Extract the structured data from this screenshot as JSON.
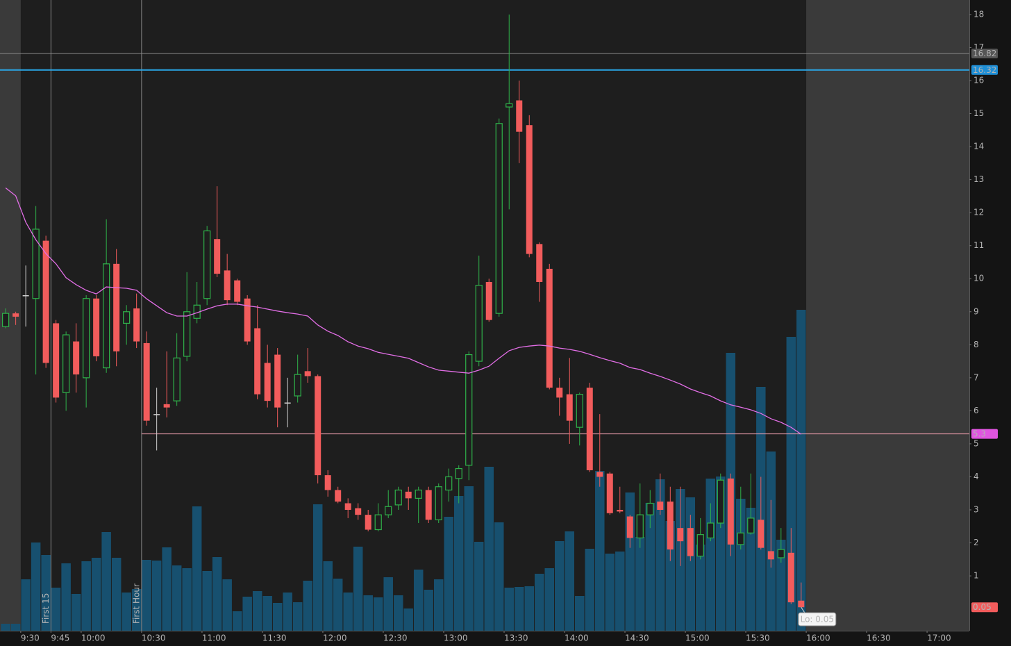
{
  "chart_data": {
    "type": "candlestick",
    "x": [
      560,
      565,
      570,
      575,
      580,
      585,
      590,
      595,
      600,
      605,
      610,
      615,
      620,
      625,
      630,
      635,
      640,
      645,
      650,
      655,
      660,
      665,
      670,
      675,
      680,
      685,
      690,
      695,
      700,
      705,
      710,
      715,
      720,
      725,
      730,
      735,
      740,
      745,
      750,
      755,
      760,
      765,
      770,
      775,
      780,
      785,
      790,
      795,
      800,
      805,
      810,
      815,
      820,
      825,
      830,
      835,
      840,
      845,
      850,
      855,
      860,
      865,
      870,
      875,
      880,
      885,
      890,
      895,
      900,
      905,
      910,
      915,
      920,
      925,
      930,
      935,
      940,
      945,
      950,
      955
    ],
    "open": [
      8.55,
      8.95,
      9.5,
      9.4,
      11.15,
      8.65,
      6.55,
      8.1,
      7.0,
      9.4,
      7.3,
      10.45,
      8.65,
      9.1,
      8.05,
      5.9,
      6.2,
      6.3,
      7.65,
      8.8,
      9.4,
      11.2,
      10.25,
      9.95,
      9.4,
      8.5,
      7.45,
      7.7,
      6.25,
      6.45,
      7.2,
      7.05,
      4.05,
      3.6,
      3.2,
      3.05,
      2.85,
      2.4,
      2.85,
      3.15,
      3.55,
      3.35,
      3.6,
      2.7,
      3.6,
      3.95,
      4.35,
      7.5,
      9.9,
      8.95,
      15.2,
      15.4,
      14.65,
      11.05,
      10.3,
      6.7,
      6.5,
      5.5,
      6.7,
      4.15,
      4.1,
      3.0,
      2.8,
      2.15,
      2.85,
      3.25,
      3.25,
      2.45,
      2.45,
      1.6,
      2.15,
      2.6,
      3.95,
      1.95,
      2.3,
      2.7,
      1.75,
      1.55,
      1.7,
      0.25
    ],
    "high": [
      9.1,
      9.0,
      10.4,
      12.2,
      11.3,
      8.75,
      8.4,
      8.65,
      9.5,
      9.5,
      11.8,
      10.9,
      9.2,
      9.55,
      8.4,
      6.7,
      7.8,
      8.35,
      10.2,
      9.9,
      11.6,
      12.8,
      10.75,
      10.0,
      9.5,
      9.2,
      8.0,
      7.9,
      7.0,
      7.7,
      7.9,
      7.1,
      4.2,
      3.7,
      3.35,
      3.2,
      3.0,
      3.2,
      3.6,
      3.7,
      3.7,
      3.7,
      3.7,
      3.8,
      4.25,
      4.35,
      7.8,
      10.7,
      10.0,
      14.85,
      18.0,
      16.0,
      14.95,
      11.1,
      10.45,
      7.0,
      7.6,
      6.55,
      6.85,
      5.9,
      4.15,
      3.7,
      2.85,
      3.8,
      3.6,
      4.1,
      3.7,
      3.7,
      2.85,
      2.75,
      3.2,
      4.1,
      4.1,
      3.7,
      4.1,
      4.0,
      3.3,
      2.45,
      2.45,
      0.8
    ],
    "low": [
      8.5,
      8.6,
      8.55,
      7.1,
      7.3,
      6.25,
      6.0,
      6.55,
      6.1,
      7.5,
      7.15,
      7.35,
      8.0,
      7.9,
      5.55,
      4.8,
      5.8,
      6.15,
      7.5,
      8.65,
      9.2,
      10.05,
      9.2,
      9.2,
      8.0,
      6.35,
      6.1,
      5.5,
      5.5,
      6.25,
      6.85,
      3.8,
      3.4,
      3.2,
      2.75,
      2.7,
      2.35,
      2.35,
      2.75,
      3.0,
      3.0,
      2.6,
      2.6,
      2.6,
      3.25,
      3.2,
      3.9,
      7.35,
      8.7,
      8.85,
      12.1,
      13.5,
      10.65,
      9.3,
      6.65,
      5.85,
      5.0,
      4.95,
      4.15,
      3.7,
      2.85,
      2.9,
      1.85,
      1.85,
      2.45,
      2.85,
      1.45,
      1.3,
      1.45,
      1.5,
      2.05,
      2.45,
      1.6,
      1.8,
      2.25,
      1.8,
      1.25,
      1.4,
      0.15,
      0.05
    ],
    "close": [
      8.95,
      8.85,
      9.5,
      11.5,
      7.45,
      6.4,
      8.3,
      7.1,
      9.4,
      7.65,
      10.45,
      7.8,
      9.0,
      8.1,
      5.7,
      5.9,
      6.1,
      7.6,
      9.0,
      9.2,
      11.45,
      10.15,
      9.35,
      9.3,
      8.1,
      6.5,
      6.3,
      6.1,
      6.25,
      7.1,
      7.05,
      4.05,
      3.6,
      3.25,
      3.0,
      2.85,
      2.4,
      2.85,
      3.1,
      3.6,
      3.35,
      3.6,
      2.7,
      3.7,
      4.0,
      4.25,
      7.7,
      9.8,
      8.75,
      14.7,
      15.3,
      14.45,
      10.75,
      9.9,
      6.7,
      6.4,
      5.7,
      6.5,
      4.2,
      4.0,
      2.9,
      2.95,
      2.15,
      2.85,
      3.2,
      3.0,
      1.8,
      2.05,
      1.6,
      2.25,
      2.6,
      3.9,
      1.95,
      2.3,
      2.75,
      1.85,
      1.5,
      1.8,
      0.2,
      0.05
    ],
    "volume": [
      10,
      10,
      74,
      127,
      109,
      62,
      97,
      53,
      100,
      105,
      142,
      105,
      55,
      60,
      102,
      101,
      120,
      94,
      90,
      179,
      86,
      106,
      74,
      28,
      49,
      57,
      50,
      40,
      55,
      41,
      72,
      182,
      100,
      75,
      55,
      121,
      51,
      48,
      77,
      51,
      32,
      88,
      59,
      74,
      164,
      194,
      208,
      128,
      236,
      156,
      62,
      63,
      64,
      82,
      90,
      129,
      143,
      50,
      118,
      230,
      111,
      114,
      199,
      135,
      184,
      218,
      158,
      204,
      192,
      124,
      219,
      222,
      400,
      190,
      177,
      351,
      258,
      131,
      423,
      462
    ],
    "moving_average": [
      12.75,
      12.51,
      11.71,
      11.18,
      10.76,
      10.45,
      10.03,
      9.82,
      9.65,
      9.54,
      9.75,
      9.73,
      9.71,
      9.65,
      9.39,
      9.18,
      8.97,
      8.87,
      8.87,
      8.97,
      9.08,
      9.18,
      9.23,
      9.23,
      9.18,
      9.14,
      9.08,
      9.02,
      8.97,
      8.93,
      8.87,
      8.6,
      8.41,
      8.28,
      8.09,
      7.96,
      7.88,
      7.77,
      7.71,
      7.65,
      7.59,
      7.46,
      7.33,
      7.23,
      7.2,
      7.17,
      7.14,
      7.23,
      7.35,
      7.59,
      7.82,
      7.92,
      7.96,
      7.99,
      7.96,
      7.9,
      7.86,
      7.8,
      7.71,
      7.61,
      7.52,
      7.44,
      7.31,
      7.25,
      7.14,
      7.04,
      6.93,
      6.81,
      6.66,
      6.55,
      6.45,
      6.3,
      6.18,
      6.11,
      6.03,
      5.92,
      5.76,
      5.65,
      5.5,
      5.29
    ],
    "up_color": "#2fb34a",
    "down_color": "#f25c5c",
    "flat_color": "#d0d0d0",
    "volume_color": "#17506f",
    "ma_color": "#e26ee6",
    "xlim": [
      559.7,
      1041
    ],
    "xticks": [
      {
        "value": 570,
        "label": "9:30"
      },
      {
        "value": 585,
        "label": "9:45"
      },
      {
        "value": 600,
        "label": "10:00"
      },
      {
        "value": 630,
        "label": "10:30"
      },
      {
        "value": 660,
        "label": "11:00"
      },
      {
        "value": 690,
        "label": "11:30"
      },
      {
        "value": 720,
        "label": "12:00"
      },
      {
        "value": 750,
        "label": "12:30"
      },
      {
        "value": 780,
        "label": "13:00"
      },
      {
        "value": 810,
        "label": "13:30"
      },
      {
        "value": 840,
        "label": "14:00"
      },
      {
        "value": 870,
        "label": "14:30"
      },
      {
        "value": 900,
        "label": "15:00"
      },
      {
        "value": 930,
        "label": "15:30"
      },
      {
        "value": 960,
        "label": "16:00"
      },
      {
        "value": 990,
        "label": "16:30"
      },
      {
        "value": 1020,
        "label": "17:00"
      }
    ],
    "ylim": [
      -0.66,
      18.44
    ],
    "yticks": [
      1,
      2,
      3,
      4,
      5,
      6,
      7,
      8,
      9,
      10,
      11,
      12,
      13,
      14,
      15,
      16,
      17,
      18
    ],
    "regular_session": [
      570,
      960
    ],
    "vlines": [
      {
        "x": 585,
        "label": "First 15"
      },
      {
        "x": 630,
        "label": "First Hour"
      }
    ],
    "hlines": [
      {
        "value": 16.82,
        "color": "#8a8a8a",
        "label_color": "#555555",
        "text_color": "#e0e0e0"
      },
      {
        "value": 16.32,
        "color": "#2aa8e8",
        "label_color": "#1f8fd6",
        "text_color": "#ffffff"
      },
      {
        "value": 5.3,
        "start": 630,
        "color": "#f3a2b2",
        "label_color": "#e055e0",
        "text_color": "#1a1a1a"
      }
    ],
    "last_price_color": "#f25c5c",
    "low_annotation": "Lo: 0.05"
  }
}
